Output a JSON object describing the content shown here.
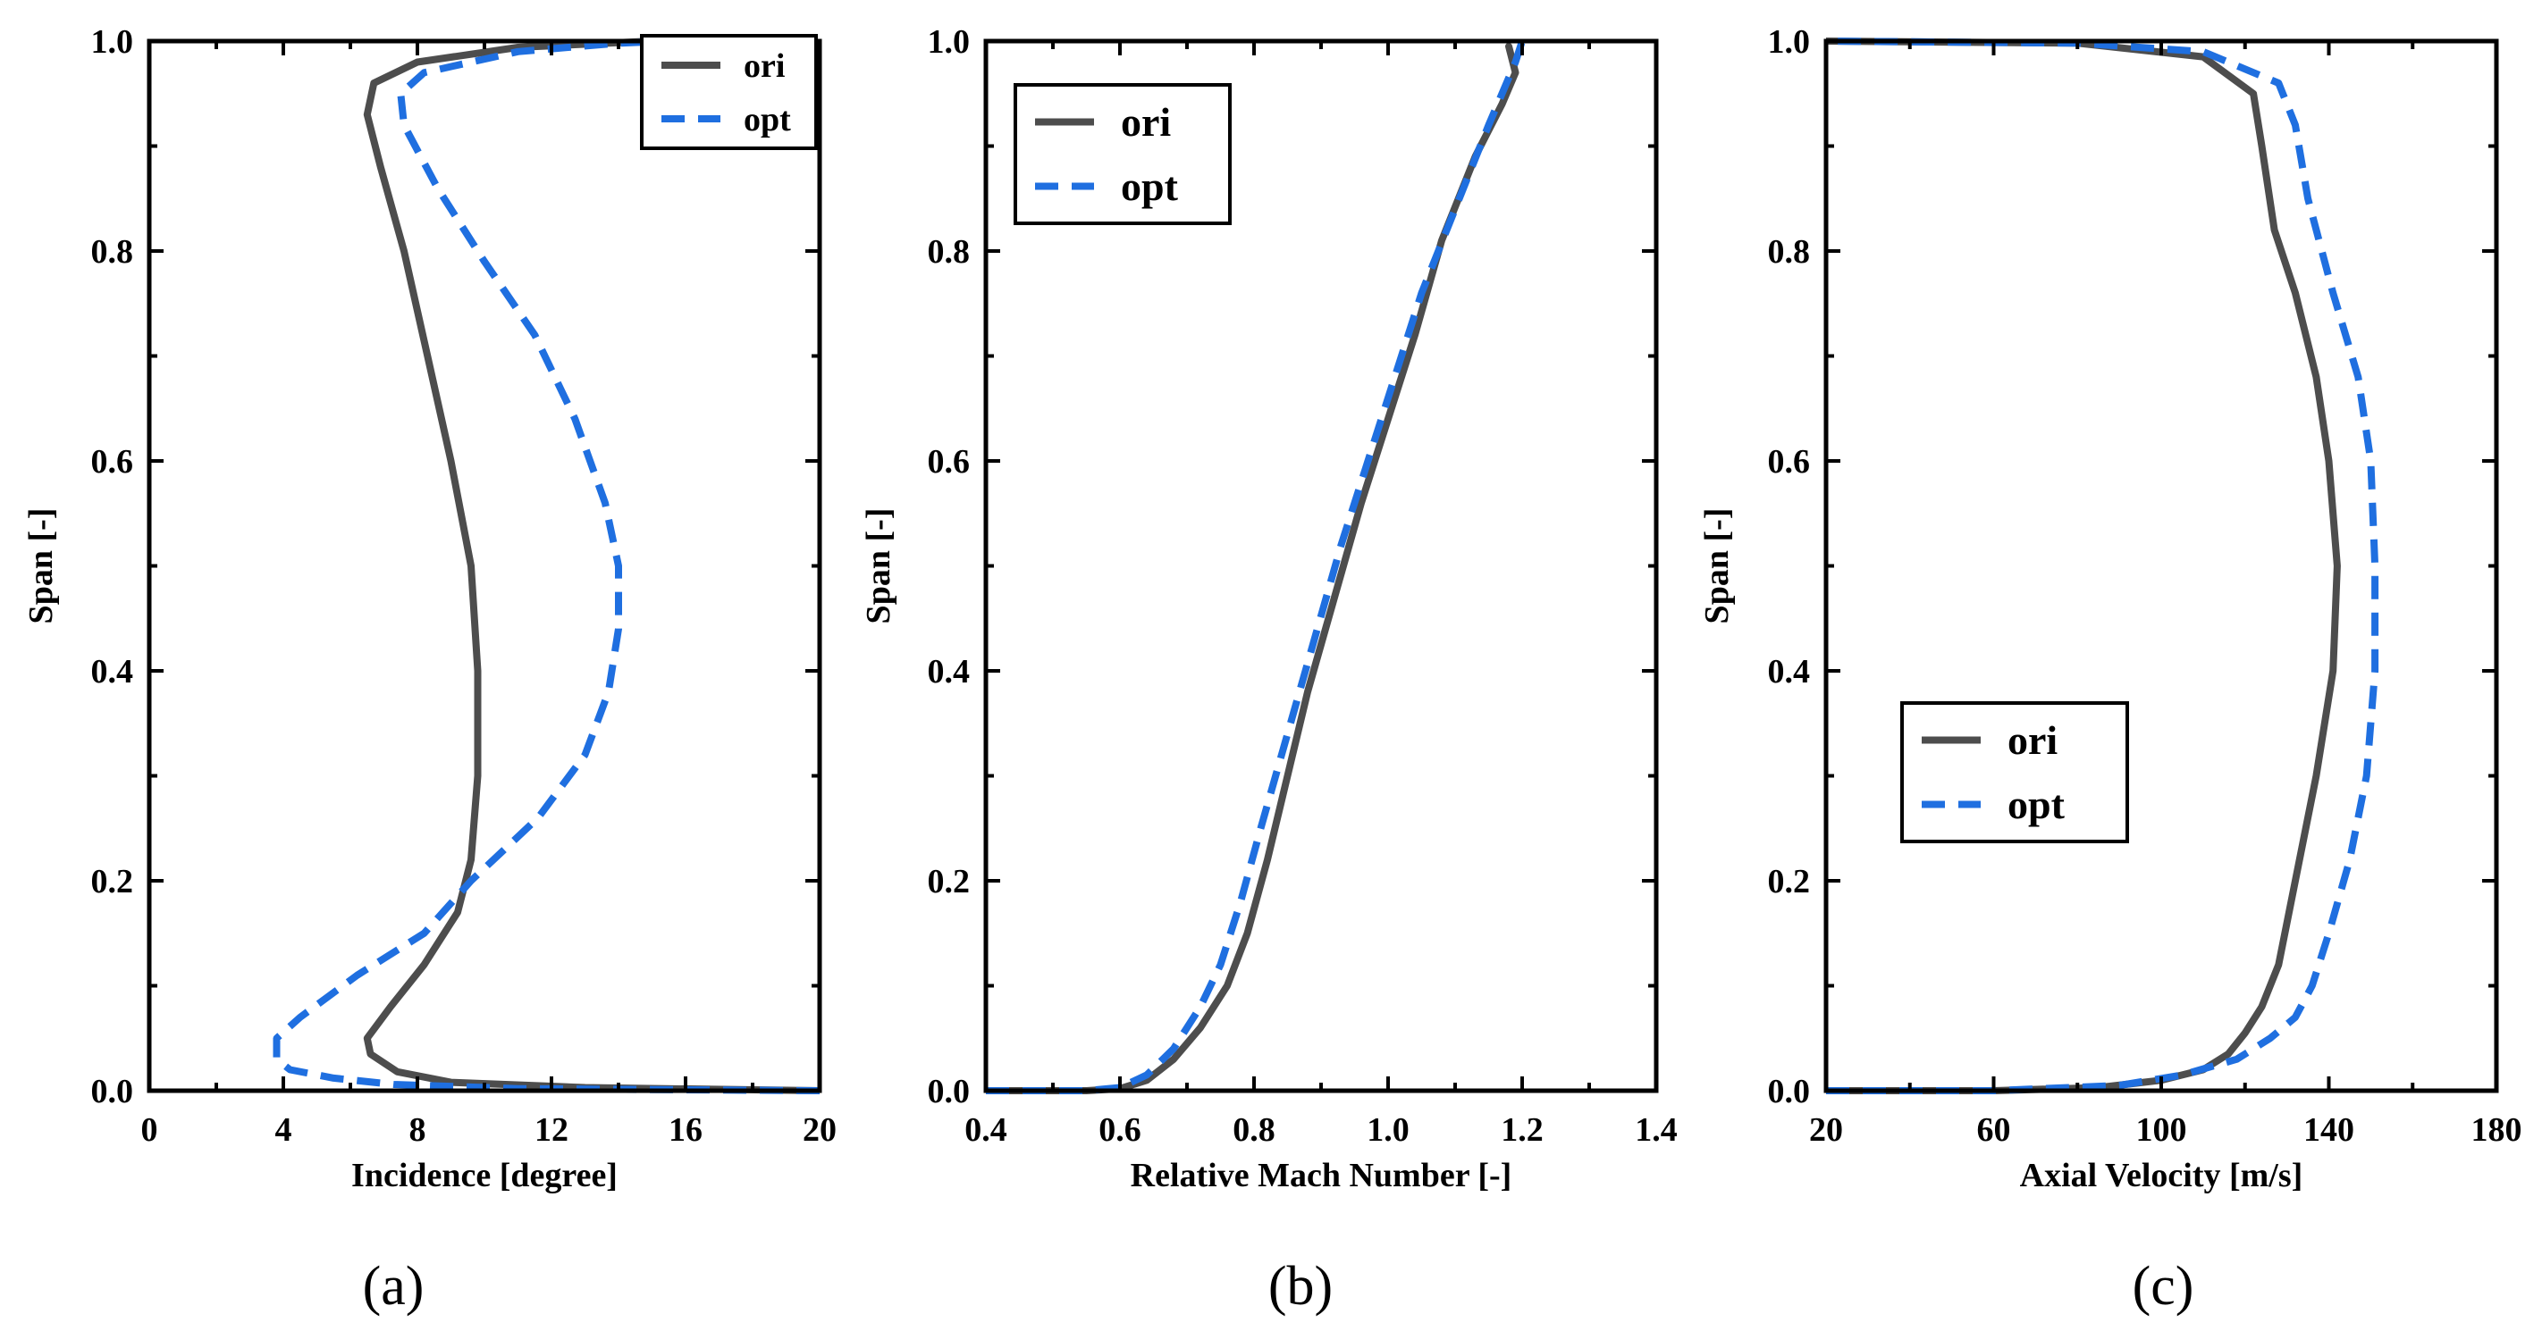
{
  "panel_labels": [
    "(a)",
    "(b)",
    "(c)"
  ],
  "chart_data": [
    {
      "type": "line",
      "panel": "(a)",
      "xlabel": "Incidence [degree]",
      "ylabel": "Span [-]",
      "xlim": [
        0,
        20
      ],
      "ylim": [
        0,
        1
      ],
      "xticks": [
        0,
        4,
        8,
        12,
        16,
        20
      ],
      "yticks": [
        0.0,
        0.2,
        0.4,
        0.6,
        0.8,
        1.0
      ],
      "xtick_labels": [
        "0",
        "4",
        "8",
        "12",
        "16",
        "20"
      ],
      "ytick_labels": [
        "0.0",
        "0.2",
        "0.4",
        "0.6",
        "0.8",
        "1.0"
      ],
      "legend_position": "top-right",
      "series": [
        {
          "name": "ori",
          "color": "#4d4d4d",
          "style": "solid",
          "points": [
            [
              20,
              0.0
            ],
            [
              13,
              0.003
            ],
            [
              9,
              0.008
            ],
            [
              7.4,
              0.018
            ],
            [
              6.6,
              0.035
            ],
            [
              6.5,
              0.05
            ],
            [
              7.2,
              0.08
            ],
            [
              8.2,
              0.12
            ],
            [
              9.2,
              0.17
            ],
            [
              9.6,
              0.22
            ],
            [
              9.8,
              0.3
            ],
            [
              9.8,
              0.4
            ],
            [
              9.6,
              0.5
            ],
            [
              9.0,
              0.6
            ],
            [
              8.3,
              0.7
            ],
            [
              7.6,
              0.8
            ],
            [
              6.9,
              0.88
            ],
            [
              6.5,
              0.93
            ],
            [
              6.7,
              0.96
            ],
            [
              8.0,
              0.98
            ],
            [
              11,
              0.994
            ],
            [
              15,
              1.0
            ]
          ]
        },
        {
          "name": "opt",
          "color": "#1f6fe0",
          "style": "dashed",
          "points": [
            [
              20,
              0.0
            ],
            [
              11,
              0.002
            ],
            [
              7.3,
              0.006
            ],
            [
              5.5,
              0.012
            ],
            [
              4.2,
              0.02
            ],
            [
              3.8,
              0.03
            ],
            [
              3.8,
              0.05
            ],
            [
              4.5,
              0.07
            ],
            [
              6.2,
              0.11
            ],
            [
              8.2,
              0.15
            ],
            [
              9.6,
              0.2
            ],
            [
              11.6,
              0.26
            ],
            [
              13.0,
              0.32
            ],
            [
              13.7,
              0.38
            ],
            [
              14.0,
              0.44
            ],
            [
              14.0,
              0.5
            ],
            [
              13.6,
              0.56
            ],
            [
              12.7,
              0.64
            ],
            [
              11.5,
              0.72
            ],
            [
              10.0,
              0.79
            ],
            [
              8.6,
              0.86
            ],
            [
              7.6,
              0.92
            ],
            [
              7.5,
              0.95
            ],
            [
              8.2,
              0.97
            ],
            [
              11.0,
              0.99
            ],
            [
              14.0,
              0.998
            ],
            [
              15.5,
              1.0
            ]
          ]
        }
      ]
    },
    {
      "type": "line",
      "panel": "(b)",
      "xlabel": "Relative Mach Number [-]",
      "ylabel": "Span [-]",
      "xlim": [
        0.4,
        1.4
      ],
      "ylim": [
        0,
        1
      ],
      "xticks": [
        0.4,
        0.6,
        0.8,
        1.0,
        1.2,
        1.4
      ],
      "yticks": [
        0.0,
        0.2,
        0.4,
        0.6,
        0.8,
        1.0
      ],
      "xtick_labels": [
        "0.4",
        "0.6",
        "0.8",
        "1.0",
        "1.2",
        "1.4"
      ],
      "ytick_labels": [
        "0.0",
        "0.2",
        "0.4",
        "0.6",
        "0.8",
        "1.0"
      ],
      "legend_position": "top-left",
      "series": [
        {
          "name": "ori",
          "color": "#4d4d4d",
          "style": "solid",
          "points": [
            [
              0.4,
              0.0
            ],
            [
              0.55,
              0.0
            ],
            [
              0.6,
              0.002
            ],
            [
              0.64,
              0.01
            ],
            [
              0.68,
              0.03
            ],
            [
              0.72,
              0.06
            ],
            [
              0.76,
              0.1
            ],
            [
              0.79,
              0.15
            ],
            [
              0.82,
              0.22
            ],
            [
              0.85,
              0.3
            ],
            [
              0.88,
              0.38
            ],
            [
              0.92,
              0.47
            ],
            [
              0.96,
              0.56
            ],
            [
              1.0,
              0.64
            ],
            [
              1.04,
              0.72
            ],
            [
              1.08,
              0.81
            ],
            [
              1.13,
              0.89
            ],
            [
              1.17,
              0.94
            ],
            [
              1.19,
              0.97
            ],
            [
              1.18,
              0.995
            ]
          ]
        },
        {
          "name": "opt",
          "color": "#1f6fe0",
          "style": "dashed",
          "points": [
            [
              0.4,
              0.0
            ],
            [
              0.55,
              0.0
            ],
            [
              0.6,
              0.003
            ],
            [
              0.64,
              0.015
            ],
            [
              0.68,
              0.04
            ],
            [
              0.72,
              0.08
            ],
            [
              0.75,
              0.12
            ],
            [
              0.78,
              0.18
            ],
            [
              0.81,
              0.25
            ],
            [
              0.85,
              0.34
            ],
            [
              0.89,
              0.43
            ],
            [
              0.93,
              0.52
            ],
            [
              0.97,
              0.6
            ],
            [
              1.01,
              0.68
            ],
            [
              1.05,
              0.76
            ],
            [
              1.1,
              0.84
            ],
            [
              1.15,
              0.92
            ],
            [
              1.19,
              0.98
            ],
            [
              1.2,
              1.0
            ]
          ]
        }
      ]
    },
    {
      "type": "line",
      "panel": "(c)",
      "xlabel": "Axial Velocity [m/s]",
      "ylabel": "Span [-]",
      "xlim": [
        20,
        180
      ],
      "ylim": [
        0,
        1
      ],
      "xticks": [
        20,
        60,
        100,
        140,
        180
      ],
      "yticks": [
        0.0,
        0.2,
        0.4,
        0.6,
        0.8,
        1.0
      ],
      "xtick_labels": [
        "20",
        "60",
        "100",
        "140",
        "180"
      ],
      "ytick_labels": [
        "0.0",
        "0.2",
        "0.4",
        "0.6",
        "0.8",
        "1.0"
      ],
      "legend_position": "center-left",
      "series": [
        {
          "name": "ori",
          "color": "#4d4d4d",
          "style": "solid",
          "points": [
            [
              20,
              0.0
            ],
            [
              60,
              0.0
            ],
            [
              85,
              0.003
            ],
            [
              100,
              0.01
            ],
            [
              110,
              0.02
            ],
            [
              116,
              0.035
            ],
            [
              120,
              0.055
            ],
            [
              124,
              0.08
            ],
            [
              128,
              0.12
            ],
            [
              132,
              0.2
            ],
            [
              137,
              0.3
            ],
            [
              141,
              0.4
            ],
            [
              142,
              0.5
            ],
            [
              140,
              0.6
            ],
            [
              137,
              0.68
            ],
            [
              132,
              0.76
            ],
            [
              127,
              0.82
            ],
            [
              124,
              0.9
            ],
            [
              122,
              0.95
            ],
            [
              110,
              0.985
            ],
            [
              80,
              0.998
            ],
            [
              20,
              1.0
            ]
          ]
        },
        {
          "name": "opt",
          "color": "#1f6fe0",
          "style": "dashed",
          "points": [
            [
              20,
              0.0
            ],
            [
              60,
              0.0
            ],
            [
              90,
              0.005
            ],
            [
              105,
              0.015
            ],
            [
              118,
              0.03
            ],
            [
              126,
              0.05
            ],
            [
              132,
              0.07
            ],
            [
              136,
              0.1
            ],
            [
              140,
              0.15
            ],
            [
              145,
              0.22
            ],
            [
              149,
              0.3
            ],
            [
              151,
              0.4
            ],
            [
              151,
              0.5
            ],
            [
              150,
              0.6
            ],
            [
              147,
              0.68
            ],
            [
              141,
              0.76
            ],
            [
              135,
              0.85
            ],
            [
              132,
              0.92
            ],
            [
              128,
              0.96
            ],
            [
              110,
              0.99
            ],
            [
              80,
              0.998
            ],
            [
              20,
              1.0
            ]
          ]
        }
      ]
    }
  ]
}
